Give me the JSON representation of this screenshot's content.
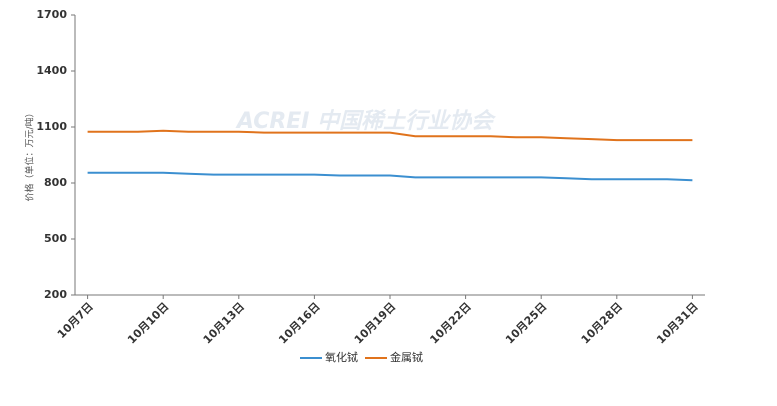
{
  "chart_data": {
    "type": "line",
    "y_label": "价格（单位：万元/吨）",
    "watermark": "ACREI 中国稀土行业协会",
    "categories": [
      "10月7日",
      null,
      null,
      "10月10日",
      null,
      null,
      "10月13日",
      null,
      null,
      "10月16日",
      null,
      null,
      "10月19日",
      null,
      null,
      "10月22日",
      null,
      null,
      "10月25日",
      null,
      null,
      "10月28日",
      null,
      null,
      "10月31日"
    ],
    "series": [
      {
        "name": "氧化铽",
        "color": "#3b8fd0",
        "values": [
          855,
          855,
          855,
          855,
          850,
          845,
          845,
          845,
          845,
          845,
          840,
          840,
          840,
          830,
          830,
          830,
          830,
          830,
          830,
          825,
          820,
          820,
          820,
          820,
          815
        ]
      },
      {
        "name": "金属铽",
        "color": "#e0731c",
        "values": [
          1075,
          1075,
          1075,
          1080,
          1075,
          1075,
          1075,
          1070,
          1070,
          1070,
          1070,
          1070,
          1070,
          1050,
          1050,
          1050,
          1050,
          1045,
          1045,
          1040,
          1035,
          1030,
          1030,
          1030,
          1030
        ]
      }
    ],
    "ylim": [
      200,
      1700
    ],
    "yticks": [
      200,
      500,
      800,
      1100,
      1400,
      1700
    ],
    "grid": false
  }
}
